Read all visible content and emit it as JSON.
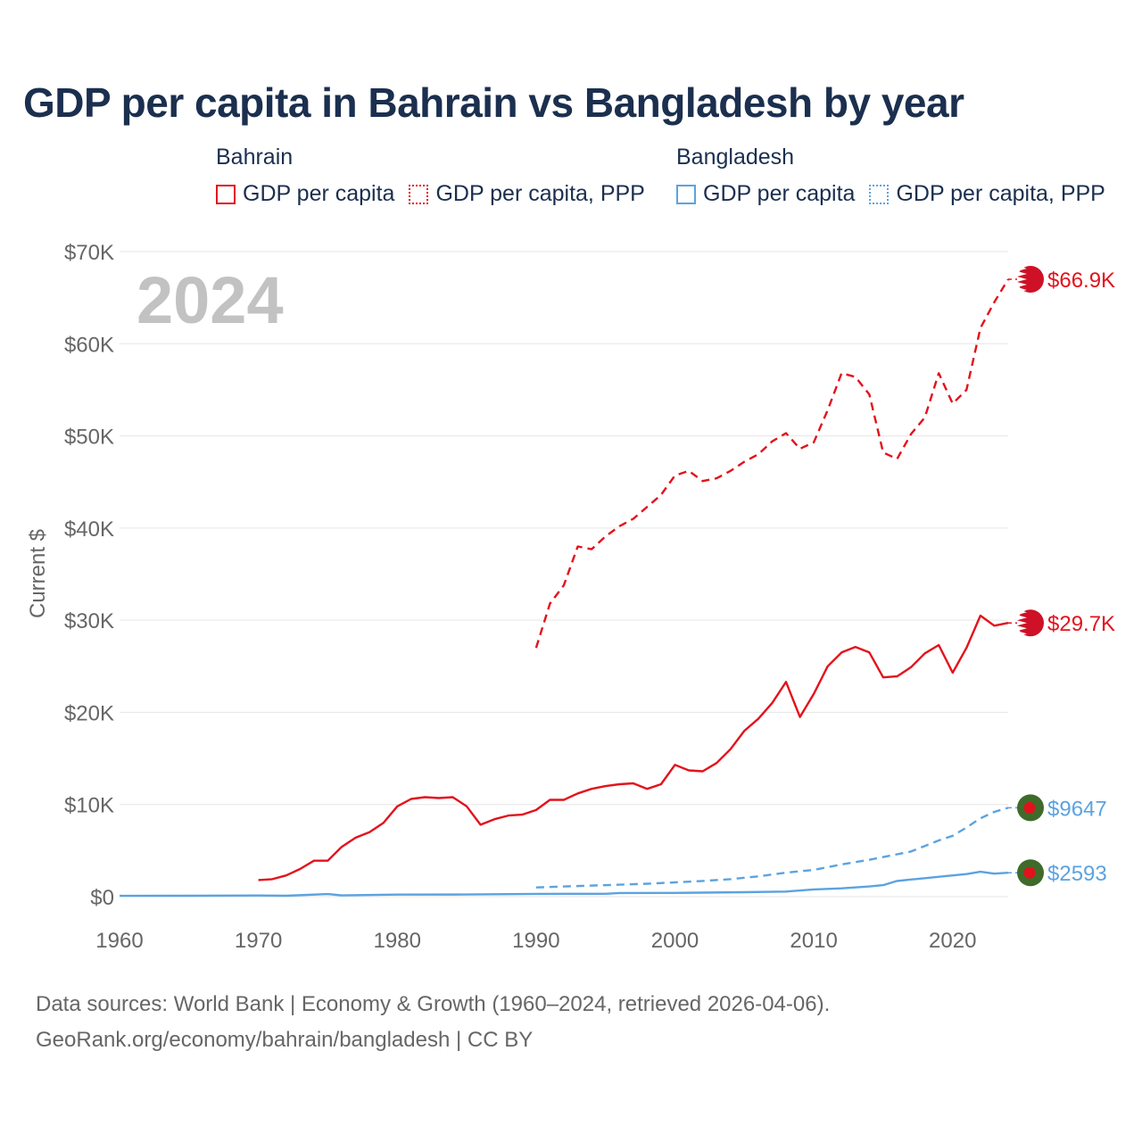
{
  "title": "GDP per capita in Bahrain vs Bangladesh by year",
  "legend": [
    {
      "country": "Bahrain",
      "items": [
        {
          "label": "GDP per capita",
          "color": "#e3121c",
          "style": "solid"
        },
        {
          "label": "GDP per capita, PPP",
          "color": "#e3121c",
          "style": "dotted"
        }
      ]
    },
    {
      "country": "Bangladesh",
      "items": [
        {
          "label": "GDP per capita",
          "color": "#5ba3e0",
          "style": "solid"
        },
        {
          "label": "GDP per capita, PPP",
          "color": "#5ba3e0",
          "style": "dotted"
        }
      ]
    }
  ],
  "footer": {
    "line1": "Data sources: World Bank | Economy & Growth (1960–2024, retrieved 2026-04-06).",
    "line2": "GeoRank.org/economy/bahrain/bangladesh | CC BY"
  },
  "chart_data": {
    "type": "line",
    "title": "GDP per capita in Bahrain vs Bangladesh by year",
    "year_label": "2024",
    "ylabel": "Current $",
    "xlabel": "",
    "xlim": [
      1960,
      2024
    ],
    "ylim": [
      0,
      70000
    ],
    "x_ticks": [
      1960,
      1970,
      1980,
      1990,
      2000,
      2010,
      2020
    ],
    "x_tick_labels": [
      "1960",
      "1970",
      "1980",
      "1990",
      "2000",
      "2010",
      "2020"
    ],
    "y_ticks": [
      0,
      10000,
      20000,
      30000,
      40000,
      50000,
      60000,
      70000
    ],
    "y_tick_labels": [
      "$0",
      "$10K",
      "$20K",
      "$30K",
      "$40K",
      "$50K",
      "$60K",
      "$70K"
    ],
    "grid": true,
    "series": [
      {
        "name": "Bahrain GDP per capita, PPP",
        "country": "Bahrain",
        "color": "#e3121c",
        "dash": "dashed",
        "end_label": "$66.9K",
        "x": [
          1990,
          1991,
          1992,
          1993,
          1994,
          1995,
          1996,
          1997,
          1998,
          1999,
          2000,
          2001,
          2002,
          2003,
          2004,
          2005,
          2006,
          2007,
          2008,
          2009,
          2010,
          2011,
          2012,
          2013,
          2014,
          2015,
          2016,
          2017,
          2018,
          2019,
          2020,
          2021,
          2022,
          2023,
          2024
        ],
        "values": [
          27000,
          31800,
          33800,
          38000,
          37700,
          39100,
          40200,
          41000,
          42300,
          43600,
          45700,
          46200,
          45100,
          45400,
          46200,
          47200,
          48000,
          49400,
          50300,
          48600,
          49300,
          52800,
          56800,
          56400,
          54500,
          48200,
          47500,
          50200,
          52000,
          56800,
          53500,
          55000,
          61700,
          64500,
          67000
        ]
      },
      {
        "name": "Bahrain GDP per capita",
        "country": "Bahrain",
        "color": "#e3121c",
        "dash": "solid",
        "end_label": "$29.7K",
        "x": [
          1970,
          1971,
          1972,
          1973,
          1974,
          1975,
          1976,
          1977,
          1978,
          1979,
          1980,
          1981,
          1982,
          1983,
          1984,
          1985,
          1986,
          1987,
          1988,
          1989,
          1990,
          1991,
          1992,
          1993,
          1994,
          1995,
          1996,
          1997,
          1998,
          1999,
          2000,
          2001,
          2002,
          2003,
          2004,
          2005,
          2006,
          2007,
          2008,
          2009,
          2010,
          2011,
          2012,
          2013,
          2014,
          2015,
          2016,
          2017,
          2018,
          2019,
          2020,
          2021,
          2022,
          2023,
          2024
        ],
        "values": [
          1800,
          1900,
          2300,
          3000,
          3900,
          3900,
          5400,
          6400,
          7000,
          8000,
          9800,
          10600,
          10800,
          10700,
          10800,
          9800,
          7800,
          8400,
          8800,
          8900,
          9400,
          10500,
          10500,
          11200,
          11700,
          12000,
          12200,
          12300,
          11700,
          12200,
          14300,
          13700,
          13600,
          14500,
          16000,
          18000,
          19300,
          21000,
          23300,
          19500,
          22000,
          25000,
          26500,
          27100,
          26500,
          23800,
          23900,
          24900,
          26400,
          27300,
          24300,
          27000,
          30500,
          29400,
          29700
        ]
      },
      {
        "name": "Bangladesh GDP per capita, PPP",
        "country": "Bangladesh",
        "color": "#5ba3e0",
        "dash": "dashed",
        "end_label": "$9647",
        "x": [
          1990,
          1992,
          1994,
          1996,
          1998,
          2000,
          2002,
          2004,
          2006,
          2008,
          2010,
          2012,
          2014,
          2016,
          2017,
          2018,
          2019,
          2020,
          2021,
          2022,
          2023,
          2024
        ],
        "values": [
          1000,
          1100,
          1200,
          1300,
          1400,
          1550,
          1700,
          1900,
          2200,
          2600,
          2900,
          3500,
          4000,
          4600,
          4900,
          5500,
          6100,
          6600,
          7500,
          8500,
          9200,
          9647
        ]
      },
      {
        "name": "Bangladesh GDP per capita",
        "country": "Bangladesh",
        "color": "#5ba3e0",
        "dash": "solid",
        "end_label": "$2593",
        "x": [
          1960,
          1965,
          1970,
          1972,
          1975,
          1976,
          1980,
          1985,
          1990,
          1995,
          1996,
          2000,
          2005,
          2008,
          2010,
          2012,
          2014,
          2015,
          2016,
          2018,
          2020,
          2021,
          2022,
          2023,
          2024
        ],
        "values": [
          90,
          100,
          130,
          95,
          280,
          140,
          220,
          230,
          300,
          310,
          400,
          410,
          480,
          550,
          780,
          900,
          1100,
          1250,
          1700,
          2000,
          2300,
          2450,
          2700,
          2500,
          2593
        ]
      }
    ]
  }
}
